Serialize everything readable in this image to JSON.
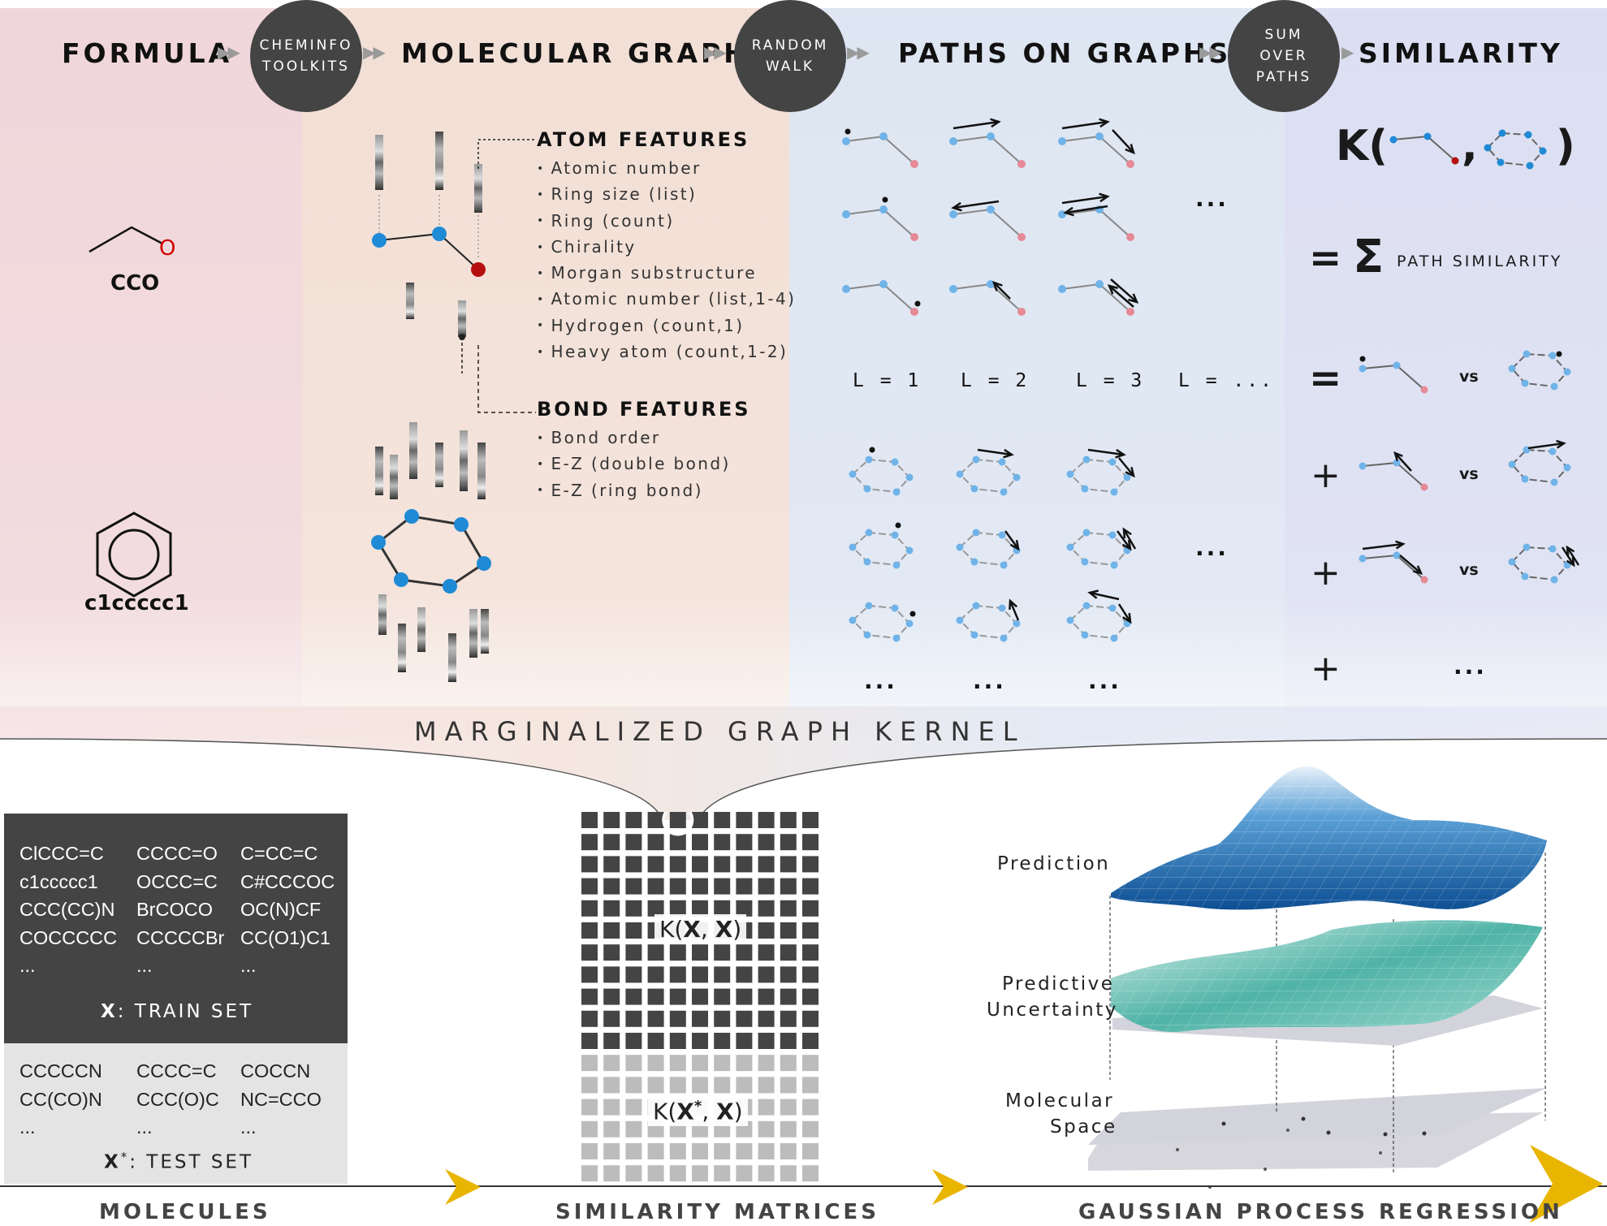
{
  "header": {
    "steps": [
      "FORMULA",
      "MOLECULAR GRAPH",
      "PATHS ON GRAPHS",
      "SIMILARITY"
    ],
    "connectors": [
      "CHEMINFO\nTOOLKITS",
      "RANDOM\nWALK",
      "SUM\nOVER\nPATHS"
    ]
  },
  "formula": {
    "ethanol_smiles": "CCO",
    "ethanol_atom": "O",
    "benzene_smiles": "c1ccccc1"
  },
  "atom_features": {
    "title": "ATOM FEATURES",
    "items": [
      "Atomic number",
      "Ring size (list)",
      "Ring (count)",
      "Chirality",
      "Morgan substructure",
      "Atomic number (list,1-4)",
      "Hydrogen (count,1)",
      "Heavy atom (count,1-2)"
    ]
  },
  "bond_features": {
    "title": "BOND FEATURES",
    "items": [
      "Bond order",
      "E-Z (double bond)",
      "E-Z (ring bond)"
    ]
  },
  "paths": {
    "lengths": [
      "L = 1",
      "L = 2",
      "L = 3",
      "L = ..."
    ],
    "ellipsis": "..."
  },
  "similarity": {
    "kernel_open": "K(",
    "kernel_comma": ",",
    "kernel_close": ")",
    "equals": "=",
    "sum_symbol": "Σ",
    "sum_label": "PATH SIMILARITY",
    "plus": "+",
    "vs": "vs",
    "ellipsis": "..."
  },
  "kernel_banner": "MARGINALIZED GRAPH KERNEL",
  "train_set": {
    "rows": [
      [
        "ClCCC=C",
        "CCCC=O",
        "C=CC=C"
      ],
      [
        "c1ccccc1",
        "OCCC=C",
        "C#CCCOC"
      ],
      [
        "CCC(CC)N",
        "BrCOCO",
        "OC(N)CF"
      ],
      [
        "COCCCCC",
        "CCCCCBr",
        "CC(O1)C1"
      ],
      [
        "...",
        "...",
        "..."
      ]
    ],
    "symbol": "X",
    "label": ": TRAIN SET"
  },
  "test_set": {
    "rows": [
      [
        "CCCCCN",
        "CCCC=C",
        "COCCN"
      ],
      [
        "CC(CO)N",
        "CCC(O)C",
        "NC=CCO"
      ],
      [
        "...",
        "...",
        "..."
      ]
    ],
    "symbol": "X",
    "sup": "*",
    "label": ": TEST SET"
  },
  "matrices": {
    "train_open": "K(",
    "train_x1": "X",
    "train_sep": ", ",
    "train_x2": "X",
    "train_close": ")",
    "test_open": "K(",
    "test_x1": "X",
    "test_sup": "*",
    "test_sep": ", ",
    "test_x2": "X",
    "test_close": ")"
  },
  "gp": {
    "prediction": "Prediction",
    "uncertainty_1": "Predictive",
    "uncertainty_2": "Uncertainty",
    "space_1": "Molecular",
    "space_2": "Space"
  },
  "bottom": {
    "molecules": "MOLECULES",
    "matrices": "SIMILARITY MATRICES",
    "gpr": "GAUSSIAN PROCESS REGRESSION"
  },
  "colors": {
    "formula_bg": "#f2d9dc",
    "graph_bg": "#f3e1d8",
    "paths_bg": "#dfe7f3",
    "sim_bg": "#dde0f2",
    "atom_blue": "#1f8ad6",
    "atom_red": "#b5100f",
    "light_blue": "#6fb3e8",
    "light_red": "#e58a96",
    "arrow_yellow": "#e8b500",
    "dark_box": "#444444",
    "light_box": "#e5e5e5"
  },
  "icons": [
    "chevron-right-icon",
    "ethanol-structure-icon",
    "benzene-structure-icon",
    "feature-vector-icon",
    "path-arrow-icon",
    "surface-plot-icon",
    "yellow-arrowhead-icon"
  ]
}
